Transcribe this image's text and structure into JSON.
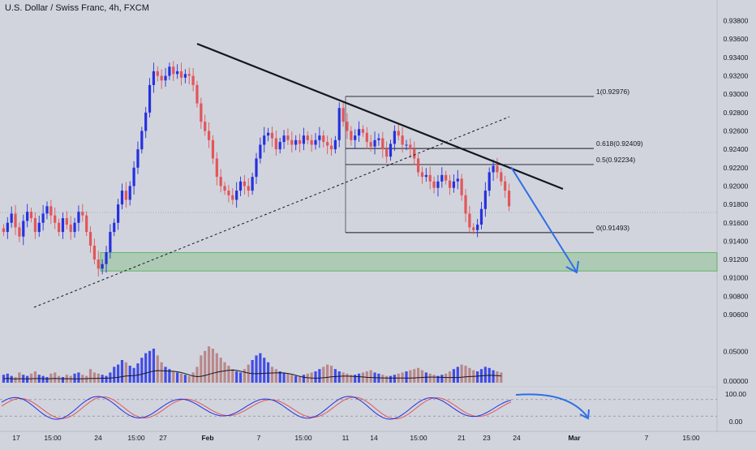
{
  "chart_data": [
    {
      "type": "candlestick",
      "title": "U.S. Dollar / Swiss Franc, 4h, FXCM",
      "x_ticks": [
        "17",
        "15:00",
        "24",
        "15:00",
        "27",
        "Feb",
        "7",
        "15:00",
        "11",
        "14",
        "15:00",
        "21",
        "23",
        "24",
        "Mar",
        "7",
        "15:00"
      ],
      "y_ticks": [
        "0.93800",
        "0.93600",
        "0.93400",
        "0.93200",
        "0.93000",
        "0.92800",
        "0.92600",
        "0.92400",
        "0.92200",
        "0.92000",
        "0.91800",
        "0.91600",
        "0.91400",
        "0.91200",
        "0.91000",
        "0.90800",
        "0.90600"
      ],
      "ylim": [
        0.9045,
        0.9392
      ],
      "grid": false,
      "colors": {
        "up": "#2530e0",
        "down": "#e2555a",
        "background": "#d1d4dc"
      },
      "close_path": [
        0.915,
        0.916,
        0.917,
        0.9155,
        0.9145,
        0.9162,
        0.9172,
        0.9165,
        0.915,
        0.916,
        0.917,
        0.9178,
        0.9168,
        0.916,
        0.915,
        0.9165,
        0.9158,
        0.915,
        0.916,
        0.9172,
        0.9168,
        0.915,
        0.9135,
        0.912,
        0.911,
        0.9115,
        0.9128,
        0.915,
        0.916,
        0.918,
        0.9195,
        0.9185,
        0.92,
        0.922,
        0.924,
        0.926,
        0.928,
        0.931,
        0.9325,
        0.932,
        0.9315,
        0.932,
        0.933,
        0.9322,
        0.9325,
        0.9318,
        0.9322,
        0.932,
        0.931,
        0.929,
        0.927,
        0.926,
        0.925,
        0.923,
        0.921,
        0.92,
        0.9195,
        0.919,
        0.9185,
        0.9195,
        0.9205,
        0.92,
        0.9195,
        0.921,
        0.923,
        0.9245,
        0.9255,
        0.9258,
        0.9252,
        0.924,
        0.9248,
        0.9255,
        0.925,
        0.9245,
        0.925,
        0.9246,
        0.9255,
        0.925,
        0.9245,
        0.925,
        0.9255,
        0.9248,
        0.9244,
        0.924,
        0.925,
        0.9285,
        0.927,
        0.926,
        0.925,
        0.9255,
        0.9262,
        0.9258,
        0.9248,
        0.9243,
        0.925,
        0.9252,
        0.924,
        0.9232,
        0.9246,
        0.926,
        0.9255,
        0.9245,
        0.9245,
        0.924,
        0.923,
        0.9215,
        0.921,
        0.9212,
        0.9205,
        0.9198,
        0.9205,
        0.9212,
        0.9206,
        0.9198,
        0.9205,
        0.9208,
        0.919,
        0.917,
        0.9155,
        0.9152,
        0.9158,
        0.9175,
        0.9195,
        0.9215,
        0.9222,
        0.9215,
        0.9205,
        0.9195,
        0.9178
      ],
      "vol_path": [
        0.7,
        0.8,
        0.6,
        0.5,
        0.9,
        0.7,
        0.6,
        0.8,
        1.0,
        0.7,
        0.6,
        0.5,
        0.8,
        0.9,
        0.6,
        0.5,
        0.7,
        0.6,
        0.8,
        0.9,
        0.7,
        0.6,
        1.2,
        0.9,
        0.8,
        0.7,
        0.6,
        0.9,
        1.4,
        1.6,
        2.0,
        1.8,
        1.5,
        1.3,
        1.7,
        2.2,
        2.6,
        2.8,
        3.0,
        2.4,
        1.8,
        1.4,
        1.2,
        1.0,
        0.9,
        0.8,
        0.7,
        0.6,
        0.9,
        1.4,
        2.4,
        2.8,
        3.2,
        3.0,
        2.6,
        2.2,
        1.8,
        1.5,
        1.2,
        1.0,
        0.9,
        1.2,
        1.6,
        2.0,
        2.4,
        2.6,
        2.2,
        1.8,
        1.4,
        1.2,
        1.0,
        0.9,
        0.8,
        0.7,
        0.6,
        0.6,
        0.7,
        0.8,
        0.9,
        1.0,
        1.2,
        1.4,
        1.6,
        1.5,
        1.2,
        1.0,
        0.9,
        0.8,
        0.7,
        0.7,
        0.8,
        0.9,
        1.0,
        1.1,
        0.9,
        0.8,
        0.7,
        0.6,
        0.6,
        0.7,
        0.8,
        0.9,
        1.0,
        1.1,
        1.2,
        1.3,
        1.1,
        0.9,
        0.8,
        0.7,
        0.6,
        0.7,
        0.8,
        1.0,
        1.2,
        1.4,
        1.6,
        1.5,
        1.3,
        1.1,
        1.0,
        1.2,
        1.4,
        1.3,
        1.1,
        1.0,
        0.9
      ],
      "annotations": {
        "resistance_line": {
          "from": [
            9.2,
            0.9349
          ],
          "to": [
            27.9,
            0.9202
          ]
        },
        "support_line": {
          "from": [
            0.9,
            0.9085
          ],
          "to": [
            25.2,
            0.9275
          ]
        },
        "fib_levels": [
          {
            "label": "1(0.92976)",
            "value": 0.92976,
            "x_from": 17.1,
            "x_to": 29.9
          },
          {
            "label": "0.618(0.92409)",
            "value": 0.92409,
            "x_from": 17.1,
            "x_to": 29.9
          },
          {
            "label": "0.5(0.92234)",
            "value": 0.92234,
            "x_from": 17.1,
            "x_to": 29.9
          },
          {
            "label": "0(0.91493)",
            "value": 0.91493,
            "x_from": 17.1,
            "x_to": 29.9
          }
        ],
        "demand_zone": {
          "from": 0.91075,
          "to": 0.91275
        },
        "forecast_arrow": {
          "from": [
            25.5,
            0.9222
          ],
          "to": [
            28.7,
            0.91195
          ]
        }
      }
    },
    {
      "type": "bar",
      "name": "volume",
      "y_ticks": [
        "0.05000",
        "0.00000"
      ],
      "ylim": [
        0,
        0.07
      ]
    },
    {
      "type": "line",
      "name": "stochastic",
      "y_ticks": [
        "100.00",
        "0.00"
      ],
      "ylim": [
        0,
        100
      ],
      "levels": [
        80,
        20
      ],
      "colors": {
        "k": "#2530e0",
        "d": "#e2555a"
      }
    }
  ]
}
